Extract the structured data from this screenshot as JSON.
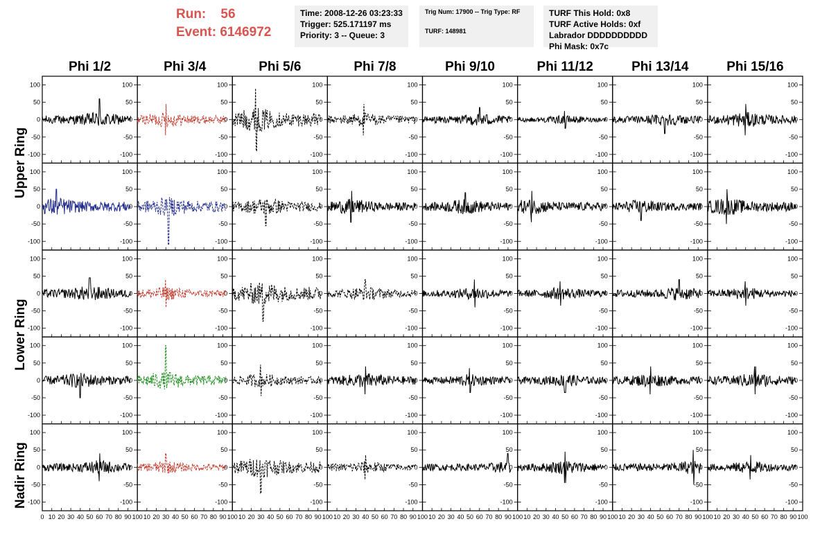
{
  "header": {
    "run_label": "Run:",
    "run_value": "56",
    "event_label": "Event:",
    "event_value": "6146972",
    "time_line": "Time: 2008-12-26 03:23:33",
    "trigger_line": "Trigger: 525.171197 ms",
    "priority_line": "Priority: 3 -- Queue: 3",
    "trig_num_line": "Trig Num: 17900 -- Trig Type: RF",
    "turf_line": "TURF: 148981",
    "turf_hold_line": "TURF This Hold: 0x8",
    "turf_active_line": "TURF Active Holds: 0xf",
    "labrador_line": "Labrador DDDDDDDDDD",
    "phi_mask_line": "Phi Mask: 0x7c"
  },
  "columns": [
    "Phi 1/2",
    "Phi 3/4",
    "Phi 5/6",
    "Phi 7/8",
    "Phi 9/10",
    "Phi 11/12",
    "Phi 13/14",
    "Phi 15/16"
  ],
  "row_labels": [
    "Upper Ring",
    "Lower Ring",
    "Nadir Ring"
  ],
  "colors": {
    "default": "#000000",
    "red": "#c0392b",
    "blue": "#1f2a8a",
    "green": "#1e8c1e",
    "run_text": "#d9534f",
    "info_bg": "#f0f0f0"
  },
  "chart_data": {
    "type": "line",
    "xlim": [
      0,
      100
    ],
    "ylim": [
      -125,
      125
    ],
    "x_ticks": [
      0,
      10,
      20,
      30,
      40,
      50,
      60,
      70,
      80,
      90,
      100
    ],
    "x_tick_labels": [
      "0",
      "10",
      "20",
      "30",
      "40",
      "50",
      "60",
      "70",
      "80",
      "90",
      "100"
    ],
    "y_ticks": [
      100,
      50,
      0,
      -50,
      -100
    ],
    "y_tick_labels": [
      "100",
      "50",
      "0",
      "-50",
      "-100"
    ],
    "waveform_x_range": [
      0,
      93
    ],
    "panels": [
      [
        {
          "color": "default",
          "dashed": false,
          "amplitude": 22,
          "peak": 60,
          "peak_x": 60
        },
        {
          "color": "red",
          "dashed": true,
          "amplitude": 22,
          "peak": 45,
          "peak_x": 30
        },
        {
          "color": "default",
          "dashed": true,
          "amplitude": 35,
          "peak": 90,
          "peak_x": 25
        },
        {
          "color": "default",
          "dashed": true,
          "amplitude": 20,
          "peak": 45,
          "peak_x": 38
        },
        {
          "color": "default",
          "dashed": false,
          "amplitude": 18,
          "peak": 35,
          "peak_x": 60
        },
        {
          "color": "default",
          "dashed": false,
          "amplitude": 12,
          "peak": 25,
          "peak_x": 50
        },
        {
          "color": "default",
          "dashed": false,
          "amplitude": 18,
          "peak": 40,
          "peak_x": 55
        },
        {
          "color": "default",
          "dashed": false,
          "amplitude": 22,
          "peak": 45,
          "peak_x": 40
        }
      ],
      [
        {
          "color": "blue",
          "dashed": false,
          "amplitude": 26,
          "peak": 50,
          "peak_x": 15
        },
        {
          "color": "blue",
          "dashed": true,
          "amplitude": 28,
          "peak": 110,
          "peak_x": 33
        },
        {
          "color": "default",
          "dashed": true,
          "amplitude": 25,
          "peak": 55,
          "peak_x": 35
        },
        {
          "color": "default",
          "dashed": false,
          "amplitude": 22,
          "peak": 45,
          "peak_x": 25
        },
        {
          "color": "default",
          "dashed": false,
          "amplitude": 22,
          "peak": 40,
          "peak_x": 45
        },
        {
          "color": "default",
          "dashed": false,
          "amplitude": 22,
          "peak": 45,
          "peak_x": 15
        },
        {
          "color": "default",
          "dashed": false,
          "amplitude": 20,
          "peak": 40,
          "peak_x": 30
        },
        {
          "color": "default",
          "dashed": false,
          "amplitude": 25,
          "peak": 50,
          "peak_x": 20
        }
      ],
      [
        {
          "color": "default",
          "dashed": false,
          "amplitude": 22,
          "peak": 45,
          "peak_x": 50
        },
        {
          "color": "red",
          "dashed": true,
          "amplitude": 20,
          "peak": 40,
          "peak_x": 30
        },
        {
          "color": "default",
          "dashed": true,
          "amplitude": 35,
          "peak": 80,
          "peak_x": 32
        },
        {
          "color": "default",
          "dashed": true,
          "amplitude": 20,
          "peak": 40,
          "peak_x": 40
        },
        {
          "color": "default",
          "dashed": false,
          "amplitude": 18,
          "peak": 40,
          "peak_x": 55
        },
        {
          "color": "default",
          "dashed": false,
          "amplitude": 18,
          "peak": 35,
          "peak_x": 45
        },
        {
          "color": "default",
          "dashed": false,
          "amplitude": 20,
          "peak": 40,
          "peak_x": 70
        },
        {
          "color": "default",
          "dashed": false,
          "amplitude": 18,
          "peak": 35,
          "peak_x": 40
        }
      ],
      [
        {
          "color": "default",
          "dashed": false,
          "amplitude": 22,
          "peak": 50,
          "peak_x": 40
        },
        {
          "color": "green",
          "dashed": true,
          "amplitude": 26,
          "peak": 100,
          "peak_x": 30
        },
        {
          "color": "default",
          "dashed": true,
          "amplitude": 20,
          "peak": 45,
          "peak_x": 30
        },
        {
          "color": "default",
          "dashed": false,
          "amplitude": 22,
          "peak": 40,
          "peak_x": 40
        },
        {
          "color": "default",
          "dashed": false,
          "amplitude": 18,
          "peak": 35,
          "peak_x": 50
        },
        {
          "color": "default",
          "dashed": false,
          "amplitude": 18,
          "peak": 35,
          "peak_x": 50
        },
        {
          "color": "default",
          "dashed": false,
          "amplitude": 20,
          "peak": 40,
          "peak_x": 40
        },
        {
          "color": "default",
          "dashed": false,
          "amplitude": 22,
          "peak": 40,
          "peak_x": 50
        }
      ],
      [
        {
          "color": "default",
          "dashed": false,
          "amplitude": 20,
          "peak": 40,
          "peak_x": 60
        },
        {
          "color": "red",
          "dashed": true,
          "amplitude": 18,
          "peak": 40,
          "peak_x": 30
        },
        {
          "color": "default",
          "dashed": true,
          "amplitude": 30,
          "peak": 75,
          "peak_x": 30
        },
        {
          "color": "default",
          "dashed": true,
          "amplitude": 18,
          "peak": 35,
          "peak_x": 40
        },
        {
          "color": "default",
          "dashed": false,
          "amplitude": 18,
          "peak": 40,
          "peak_x": 90
        },
        {
          "color": "default",
          "dashed": false,
          "amplitude": 20,
          "peak": 45,
          "peak_x": 50
        },
        {
          "color": "default",
          "dashed": false,
          "amplitude": 20,
          "peak": 50,
          "peak_x": 85
        },
        {
          "color": "default",
          "dashed": false,
          "amplitude": 18,
          "peak": 35,
          "peak_x": 45
        }
      ]
    ]
  }
}
